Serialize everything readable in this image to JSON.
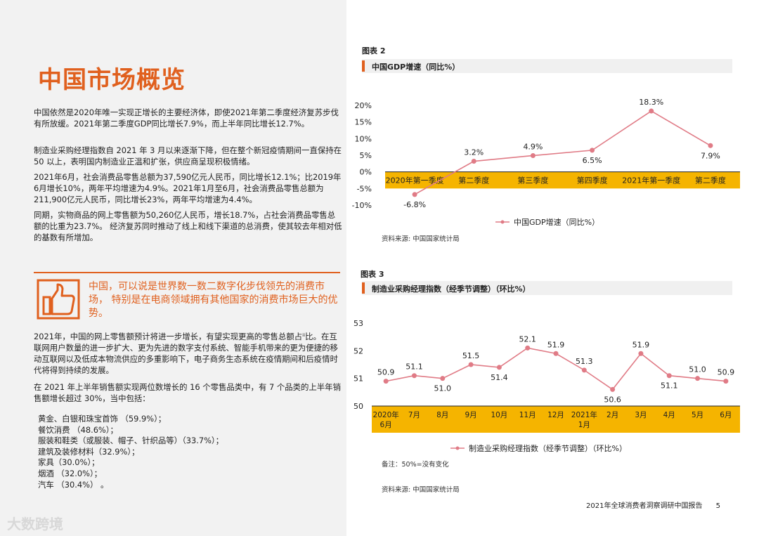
{
  "left": {
    "title": "中国市场概览",
    "paragraphs": [
      "中国依然是2020年唯一实现正增长的主要经济体，即使2021年第二季度经济复苏步伐有所放缓。2021年第二季度GDP同比增长7.9%，而上半年同比增长12.7%。",
      "制造业采购经理指数自 2021 年 3 月以来逐渐下降，但在整个新冠疫情期间一直保持在 50 以上，表明国内制造业正温和扩张，供应商呈现积极情绪。",
      "2021年6月，社会消费品零售总额为37,590亿元人民币，同比增长12.1%；比2019年6月增长10%，两年平均增速为4.9%。2021年1月至6月，社会消费品零售总额为211,900亿元人民币，同比增长23%，两年平均增速为4.4%。",
      "同期，实物商品的网上零售额为50,260亿人民币，增长18.7%，占社会消费品零售总额的比重为23.7%。 经济复苏同时推动了线上和线下渠道的总消费，使其较去年相对低的基数有所增加。"
    ],
    "callout": "中国，可以说是世界数一数二数字化步伐领先的消费市场， 特别是在电商领域拥有其他国家的消费市场巨大的优势。",
    "paragraphs2": [
      "2021年，中国的网上零售额预计将进一步增长，有望实现更高的零售总额占ⁱⁱ比。在互联网用户数量的进一步扩大、更为先进的数字支付系统、智能手机带来的更为便捷的移动互联网以及低成本物流供应的多重影响下，电子商务生态系统在疫情期间和后疫情时代将得到持续的发展。",
      "在 2021 年上半年销售额实现两位数增长的 16 个零售品类中，有 7 个品类的上半年销售额增长超过 30%，当中包括："
    ],
    "list": [
      "黄金、白银和珠宝首饰 （59.9%）；",
      "餐饮消费 （48.6%）；",
      "服装和鞋类（或服装、帽子、针织品等）（33.7%）；",
      "建筑及装修材料（32.9%）；",
      "家具（30.0%）；",
      "烟酒 （32.0%）；",
      "汽车 （30.4%） 。"
    ]
  },
  "chart_data": [
    {
      "type": "line",
      "figure_label": "图表 2",
      "title": "中国GDP增速（同比%）",
      "categories": [
        "2020年第一季度",
        "第二季度",
        "第三季度",
        "第四季度",
        "2021年第一季度",
        "第二季度"
      ],
      "series": [
        {
          "name": "中国GDP增速（同比%）",
          "values": [
            -6.8,
            3.2,
            4.9,
            6.5,
            18.3,
            7.9
          ]
        }
      ],
      "data_labels": [
        "-6.8%",
        "3.2%",
        "4.9%",
        "6.5%",
        "18.3%",
        "7.9%"
      ],
      "yticks": [
        "20%",
        "15%",
        "10%",
        "5%",
        "0%",
        "-5%",
        "-10%"
      ],
      "ylim": [
        -10,
        20
      ],
      "source": "资料来源: 中国国家统计局",
      "line_color": "#e07b86",
      "band_color": "#f5b400"
    },
    {
      "type": "line",
      "figure_label": "图表 3",
      "title": "制造业采购经理指数（经季节调整）（环比%）",
      "categories": [
        "2020年\n6月",
        "7月",
        "8月",
        "9月",
        "10月",
        "11月",
        "12月",
        "2021年\n1月",
        "2月",
        "3月",
        "4月",
        "5月",
        "6月"
      ],
      "series": [
        {
          "name": "制造业采购经理指数（经季节调整）（环比%）",
          "values": [
            50.9,
            51.1,
            51.0,
            51.5,
            51.4,
            52.1,
            51.9,
            51.3,
            50.6,
            51.9,
            51.1,
            51.0,
            50.9
          ]
        }
      ],
      "data_labels": [
        "50.9",
        "51.1",
        "51.0",
        "51.5",
        "51.4",
        "52.1",
        "51.9",
        "51.3",
        "50.6",
        "51.9",
        "51.1",
        "51.0",
        "50.9"
      ],
      "yticks": [
        "53",
        "52",
        "51",
        "50"
      ],
      "ylim": [
        50,
        53
      ],
      "note": "备注：50%=没有变化",
      "source": "资料来源: 中国国家统计局",
      "line_color": "#e07b86",
      "band_color": "#f5b400"
    }
  ],
  "footer": {
    "report": "2021年全球消费者洞察调研中国报告",
    "page": "5"
  },
  "watermark": "大数跨境"
}
